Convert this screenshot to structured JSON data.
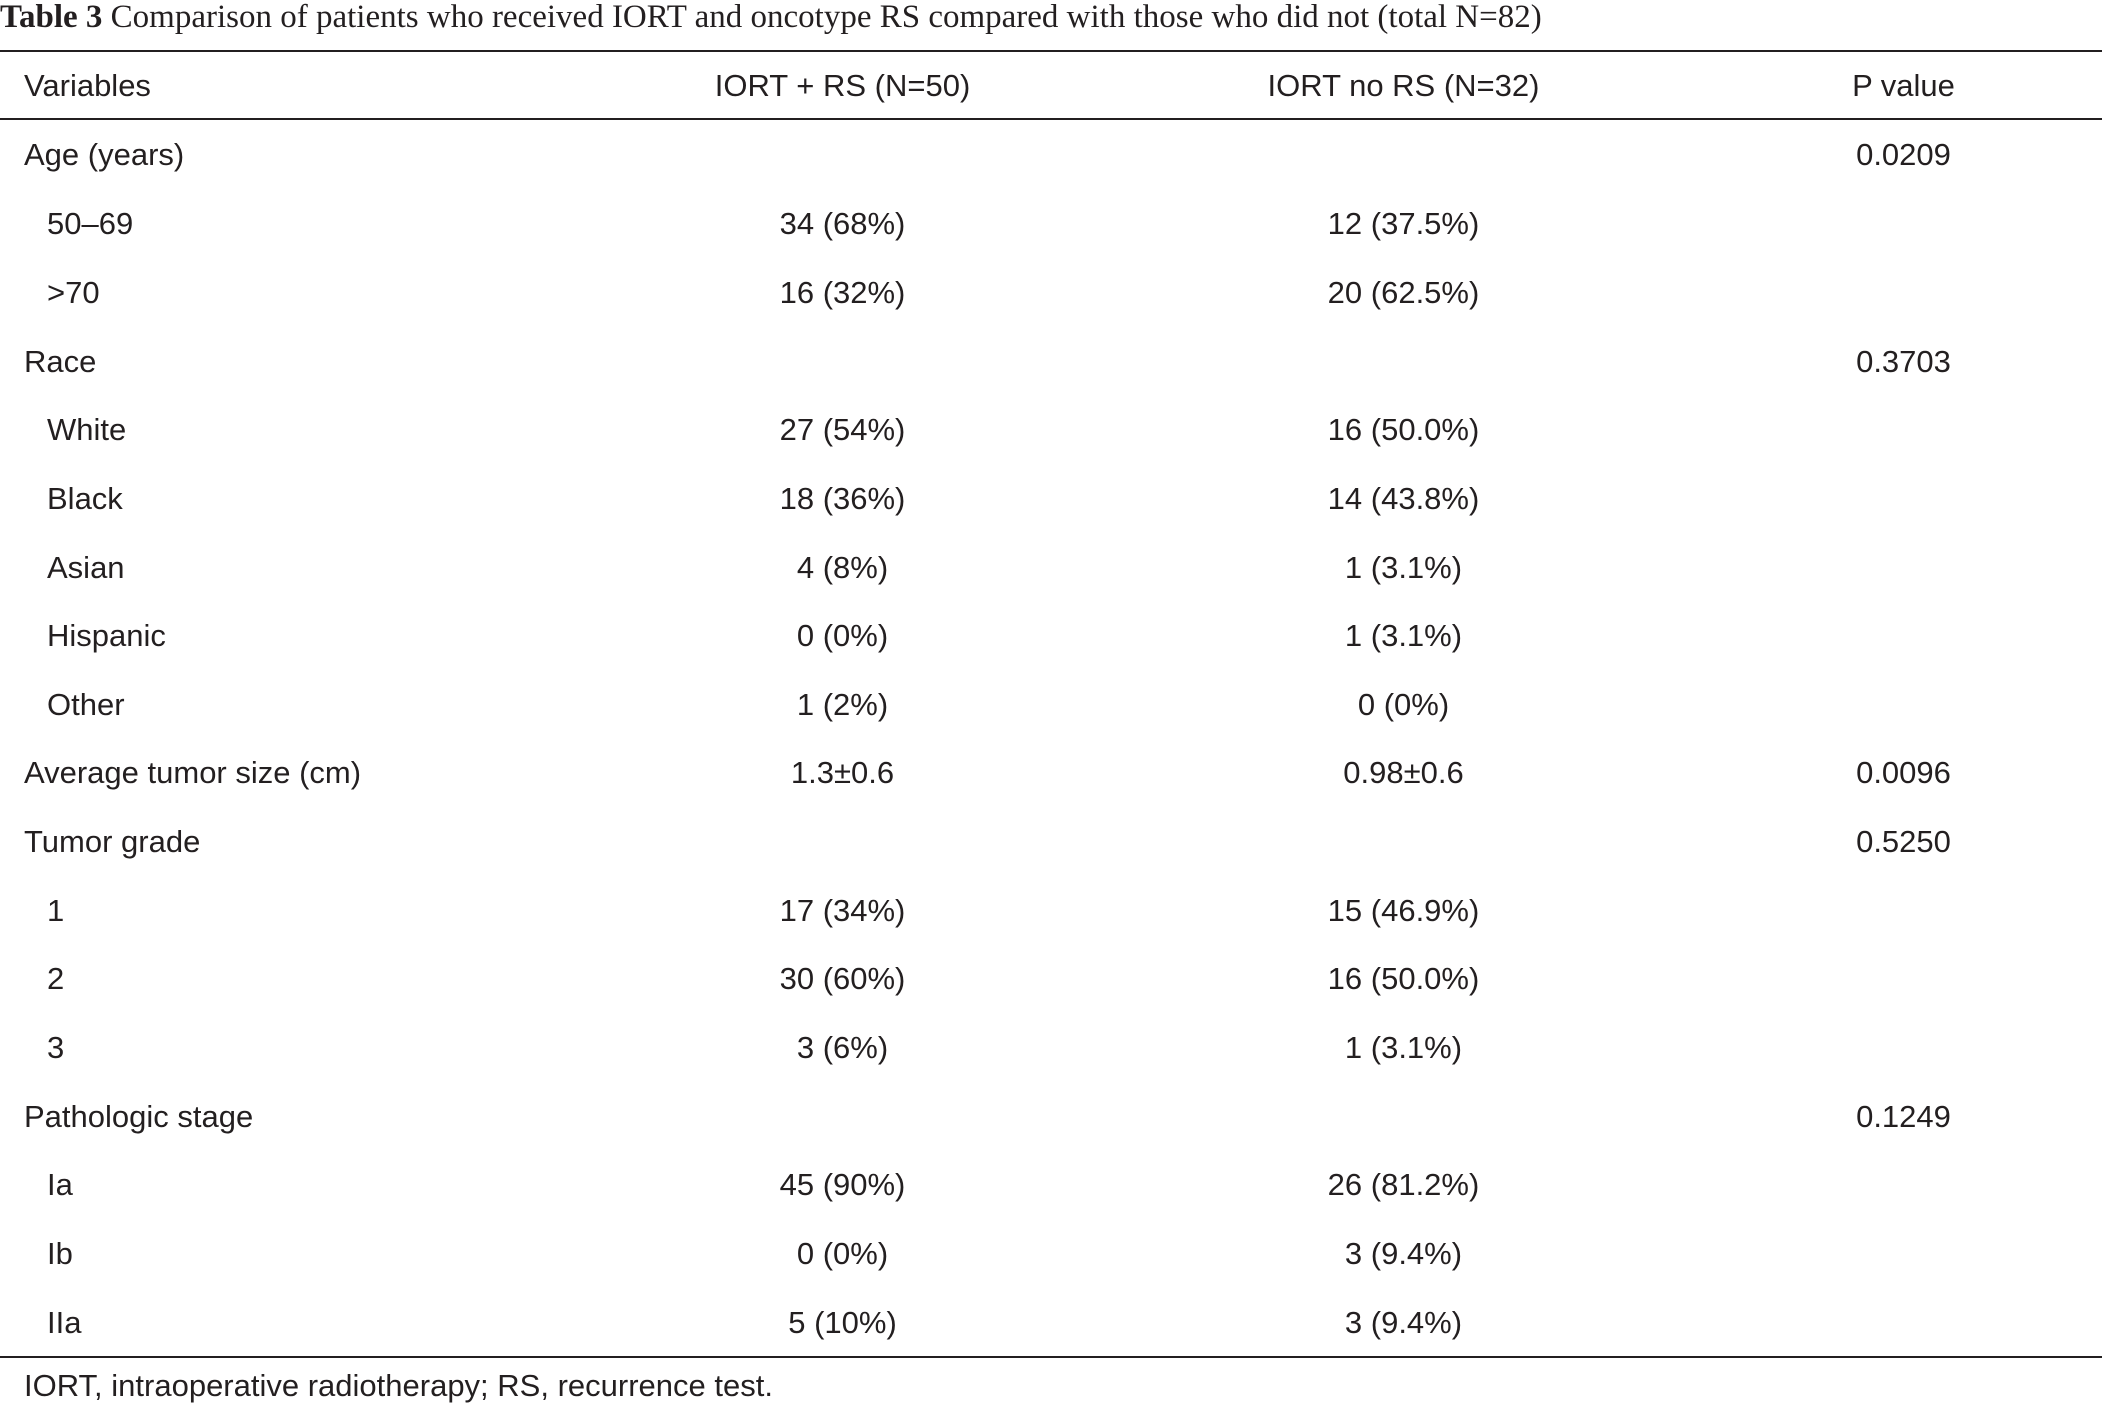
{
  "caption": {
    "label": "Table 3",
    "text": "Comparison of patients who received IORT and oncotype RS compared with those who did not (total N=82)"
  },
  "headers": {
    "variables": "Variables",
    "iort_rs": "IORT + RS (N=50)",
    "iort_no_rs": "IORT no RS (N=32)",
    "p_value": "P value"
  },
  "rows": [
    {
      "variable": "Age (years)",
      "iort_rs": "",
      "iort_no_rs": "",
      "p_value": "0.0209"
    },
    {
      "variable": "50–69",
      "iort_rs": "34 (68%)",
      "iort_no_rs": "12 (37.5%)",
      "p_value": ""
    },
    {
      "variable": ">70",
      "iort_rs": "16 (32%)",
      "iort_no_rs": "20 (62.5%)",
      "p_value": ""
    },
    {
      "variable": "Race",
      "iort_rs": "",
      "iort_no_rs": "",
      "p_value": "0.3703"
    },
    {
      "variable": "White",
      "iort_rs": "27 (54%)",
      "iort_no_rs": "16 (50.0%)",
      "p_value": ""
    },
    {
      "variable": "Black",
      "iort_rs": "18 (36%)",
      "iort_no_rs": "14 (43.8%)",
      "p_value": ""
    },
    {
      "variable": "Asian",
      "iort_rs": "4 (8%)",
      "iort_no_rs": "1 (3.1%)",
      "p_value": ""
    },
    {
      "variable": "Hispanic",
      "iort_rs": "0 (0%)",
      "iort_no_rs": "1 (3.1%)",
      "p_value": ""
    },
    {
      "variable": "Other",
      "iort_rs": "1 (2%)",
      "iort_no_rs": "0 (0%)",
      "p_value": ""
    },
    {
      "variable": "Average tumor size (cm)",
      "iort_rs": "1.3±0.6",
      "iort_no_rs": "0.98±0.6",
      "p_value": "0.0096"
    },
    {
      "variable": "Tumor grade",
      "iort_rs": "",
      "iort_no_rs": "",
      "p_value": "0.5250"
    },
    {
      "variable": "1",
      "iort_rs": "17 (34%)",
      "iort_no_rs": "15 (46.9%)",
      "p_value": ""
    },
    {
      "variable": "2",
      "iort_rs": "30 (60%)",
      "iort_no_rs": "16 (50.0%)",
      "p_value": ""
    },
    {
      "variable": "3",
      "iort_rs": "3 (6%)",
      "iort_no_rs": "1 (3.1%)",
      "p_value": ""
    },
    {
      "variable": "Pathologic stage",
      "iort_rs": "",
      "iort_no_rs": "",
      "p_value": "0.1249"
    },
    {
      "variable": "Ia",
      "iort_rs": "45 (90%)",
      "iort_no_rs": "26 (81.2%)",
      "p_value": ""
    },
    {
      "variable": "Ib",
      "iort_rs": "0 (0%)",
      "iort_no_rs": "3 (9.4%)",
      "p_value": ""
    },
    {
      "variable": "IIa",
      "iort_rs": "5 (10%)",
      "iort_no_rs": "3 (9.4%)",
      "p_value": ""
    }
  ],
  "footnote": "IORT, intraoperative radiotherapy; RS, recurrence test."
}
